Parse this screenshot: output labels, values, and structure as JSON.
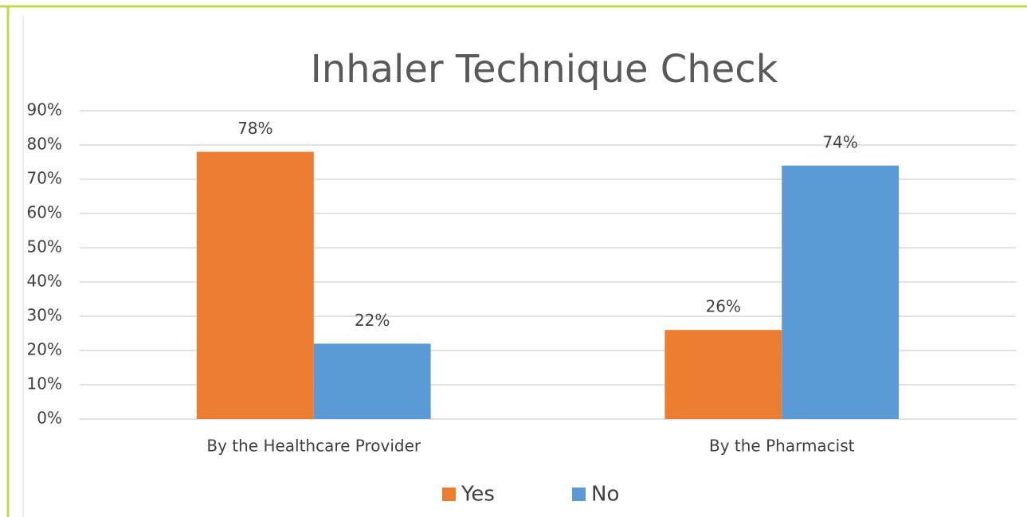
{
  "chart_data": {
    "type": "bar",
    "title": "Inhaler Technique Check",
    "categories": [
      "By the Healthcare Provider",
      "By the Pharmacist"
    ],
    "series": [
      {
        "name": "Yes",
        "color": "#ed7d31",
        "values": [
          78,
          26
        ],
        "value_labels": [
          "78%",
          "26%"
        ]
      },
      {
        "name": "No",
        "color": "#5b9bd5",
        "values": [
          22,
          74
        ],
        "value_labels": [
          "22%",
          "74%"
        ]
      }
    ],
    "ylim": [
      0,
      90
    ],
    "yticks": [
      {
        "value": 0,
        "label": "0%"
      },
      {
        "value": 10,
        "label": "10%"
      },
      {
        "value": 20,
        "label": "20%"
      },
      {
        "value": 30,
        "label": "30%"
      },
      {
        "value": 40,
        "label": "40%"
      },
      {
        "value": 50,
        "label": "50%"
      },
      {
        "value": 60,
        "label": "60%"
      },
      {
        "value": 70,
        "label": "70%"
      },
      {
        "value": 80,
        "label": "80%"
      },
      {
        "value": 90,
        "label": "90%"
      }
    ],
    "grid": true,
    "legend": "bottom"
  }
}
